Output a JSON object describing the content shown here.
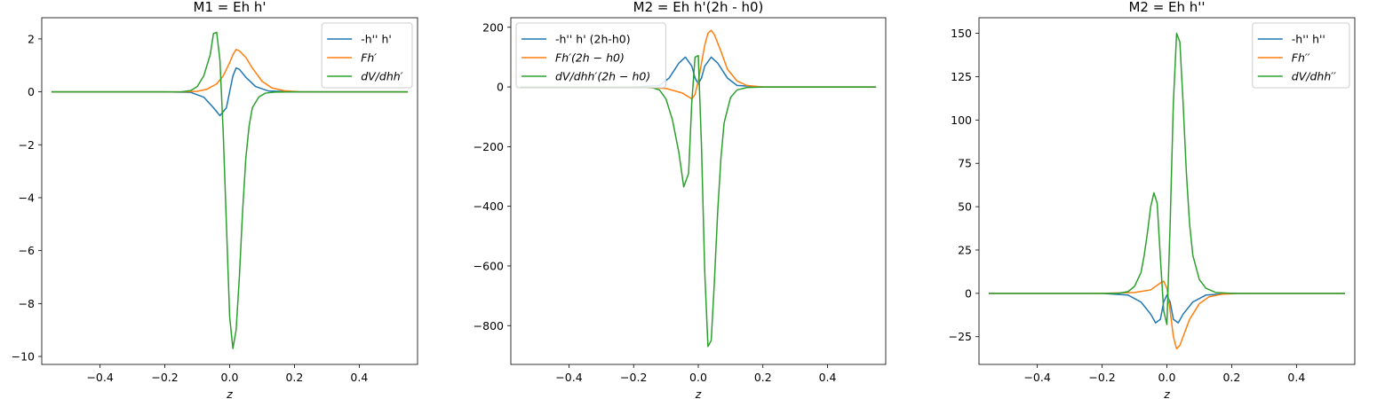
{
  "chart_data": [
    {
      "type": "line",
      "title": "M1 = Eh h'",
      "xlabel": "z",
      "xlim": [
        -0.58,
        0.58
      ],
      "ylim": [
        -10.3,
        2.8
      ],
      "xticks": [
        -0.4,
        -0.2,
        0.0,
        0.2,
        0.4
      ],
      "xtick_labels": [
        "−0.4",
        "−0.2",
        "0.0",
        "0.2",
        "0.4"
      ],
      "yticks": [
        -10,
        -8,
        -6,
        -4,
        -2,
        0,
        2
      ],
      "ytick_labels": [
        "−10",
        "−8",
        "−6",
        "−4",
        "−2",
        "0",
        "2"
      ],
      "legend_position": "upper right",
      "series": [
        {
          "name": "-h'' h'",
          "color": "#1f77b4",
          "x": [
            -0.55,
            -0.2,
            -0.12,
            -0.08,
            -0.05,
            -0.03,
            -0.01,
            0.0,
            0.01,
            0.02,
            0.03,
            0.05,
            0.08,
            0.12,
            0.2,
            0.55
          ],
          "y": [
            0,
            0,
            -0.02,
            -0.2,
            -0.6,
            -0.9,
            -0.6,
            0.0,
            0.6,
            0.9,
            0.85,
            0.55,
            0.2,
            0.03,
            0,
            0
          ]
        },
        {
          "name": "Fh′",
          "color": "#ff7f0e",
          "x": [
            -0.55,
            -0.15,
            -0.1,
            -0.07,
            -0.04,
            -0.02,
            0.0,
            0.01,
            0.02,
            0.03,
            0.05,
            0.07,
            0.1,
            0.13,
            0.17,
            0.22,
            0.55
          ],
          "y": [
            0,
            0,
            0.02,
            0.1,
            0.3,
            0.6,
            1.1,
            1.4,
            1.6,
            1.55,
            1.3,
            0.9,
            0.4,
            0.15,
            0.04,
            0,
            0
          ]
        },
        {
          "name": "dV/dhh′",
          "color": "#2ca02c",
          "x": [
            -0.55,
            -0.15,
            -0.12,
            -0.1,
            -0.08,
            -0.06,
            -0.05,
            -0.04,
            -0.03,
            -0.02,
            -0.01,
            0.0,
            0.01,
            0.02,
            0.03,
            0.04,
            0.05,
            0.06,
            0.07,
            0.09,
            0.11,
            0.14,
            0.2,
            0.55
          ],
          "y": [
            0,
            0,
            0.05,
            0.2,
            0.6,
            1.4,
            2.2,
            2.25,
            1.2,
            -1.5,
            -5,
            -8.5,
            -9.7,
            -9.0,
            -7.0,
            -4.5,
            -2.5,
            -1.3,
            -0.6,
            -0.2,
            -0.05,
            -0.01,
            0,
            0
          ]
        }
      ]
    },
    {
      "type": "line",
      "title": "M2 = Eh h'(2h - h0)",
      "xlabel": "z",
      "xlim": [
        -0.58,
        0.58
      ],
      "ylim": [
        -930,
        232
      ],
      "xticks": [
        -0.4,
        -0.2,
        0.0,
        0.2,
        0.4
      ],
      "xtick_labels": [
        "−0.4",
        "−0.2",
        "0.0",
        "0.2",
        "0.4"
      ],
      "yticks": [
        -800,
        -600,
        -400,
        -200,
        0,
        200
      ],
      "ytick_labels": [
        "−800",
        "−600",
        "−400",
        "−200",
        "0",
        "200"
      ],
      "legend_position": "upper left",
      "series": [
        {
          "name": "-h'' h' (2h-h0)",
          "color": "#1f77b4",
          "x": [
            -0.55,
            -0.2,
            -0.12,
            -0.09,
            -0.06,
            -0.04,
            -0.02,
            -0.01,
            0.0,
            0.01,
            0.02,
            0.04,
            0.06,
            0.09,
            0.12,
            0.2,
            0.55
          ],
          "y": [
            0,
            0,
            5,
            30,
            80,
            100,
            70,
            30,
            10,
            30,
            70,
            100,
            80,
            30,
            5,
            0,
            0
          ]
        },
        {
          "name": "Fh′(2h − h0)",
          "color": "#ff7f0e",
          "x": [
            -0.55,
            -0.2,
            -0.1,
            -0.05,
            -0.02,
            -0.01,
            0.0,
            0.01,
            0.02,
            0.03,
            0.04,
            0.05,
            0.07,
            0.09,
            0.12,
            0.15,
            0.2,
            0.55
          ],
          "y": [
            0,
            0,
            -5,
            -20,
            -40,
            -25,
            20,
            80,
            140,
            180,
            190,
            175,
            120,
            60,
            20,
            5,
            0,
            0
          ]
        },
        {
          "name": "dV/dhh′(2h − h0)",
          "color": "#2ca02c",
          "x": [
            -0.55,
            -0.15,
            -0.12,
            -0.1,
            -0.08,
            -0.06,
            -0.045,
            -0.03,
            -0.02,
            -0.01,
            0.0,
            0.01,
            0.02,
            0.03,
            0.04,
            0.05,
            0.06,
            0.07,
            0.08,
            0.1,
            0.12,
            0.15,
            0.2,
            0.55
          ],
          "y": [
            0,
            0,
            -10,
            -40,
            -110,
            -220,
            -335,
            -290,
            -50,
            100,
            105,
            -200,
            -620,
            -870,
            -850,
            -650,
            -420,
            -240,
            -120,
            -35,
            -10,
            -2,
            0,
            0
          ]
        }
      ]
    },
    {
      "type": "line",
      "title": "M2 = Eh h''",
      "xlabel": "z",
      "xlim": [
        -0.58,
        0.58
      ],
      "ylim": [
        -41,
        159
      ],
      "xticks": [
        -0.4,
        -0.2,
        0.0,
        0.2,
        0.4
      ],
      "xtick_labels": [
        "−0.4",
        "−0.2",
        "0.0",
        "0.2",
        "0.4"
      ],
      "yticks": [
        -25,
        0,
        25,
        50,
        75,
        100,
        125,
        150
      ],
      "ytick_labels": [
        "−25",
        "0",
        "25",
        "50",
        "75",
        "100",
        "125",
        "150"
      ],
      "legend_position": "upper right",
      "series": [
        {
          "name": "-h'' h''",
          "color": "#1f77b4",
          "x": [
            -0.55,
            -0.2,
            -0.12,
            -0.08,
            -0.05,
            -0.035,
            -0.02,
            -0.01,
            0.0,
            0.01,
            0.02,
            0.035,
            0.05,
            0.08,
            0.12,
            0.2,
            0.55
          ],
          "y": [
            0,
            0,
            -1,
            -5,
            -12,
            -17,
            -15,
            -5,
            -1,
            -5,
            -15,
            -17,
            -12,
            -5,
            -1,
            0,
            0
          ]
        },
        {
          "name": "Fh′′",
          "color": "#ff7f0e",
          "x": [
            -0.55,
            -0.2,
            -0.1,
            -0.05,
            -0.02,
            -0.01,
            0.0,
            0.01,
            0.02,
            0.03,
            0.04,
            0.05,
            0.07,
            0.1,
            0.13,
            0.17,
            0.22,
            0.55
          ],
          "y": [
            0,
            0,
            0.5,
            2,
            6,
            7,
            3,
            -10,
            -25,
            -32,
            -30,
            -25,
            -15,
            -6,
            -2,
            -0.5,
            0,
            0
          ]
        },
        {
          "name": "dV/dhh′′",
          "color": "#2ca02c",
          "x": [
            -0.55,
            -0.15,
            -0.12,
            -0.1,
            -0.08,
            -0.07,
            -0.06,
            -0.05,
            -0.04,
            -0.03,
            -0.02,
            -0.01,
            0.0,
            0.01,
            0.02,
            0.03,
            0.04,
            0.05,
            0.06,
            0.07,
            0.08,
            0.1,
            0.12,
            0.15,
            0.2,
            0.55
          ],
          "y": [
            0,
            0,
            1,
            4,
            12,
            22,
            35,
            50,
            58,
            52,
            20,
            -10,
            -18,
            40,
            110,
            150,
            145,
            110,
            70,
            40,
            22,
            8,
            3,
            0.5,
            0,
            0
          ]
        }
      ]
    }
  ]
}
